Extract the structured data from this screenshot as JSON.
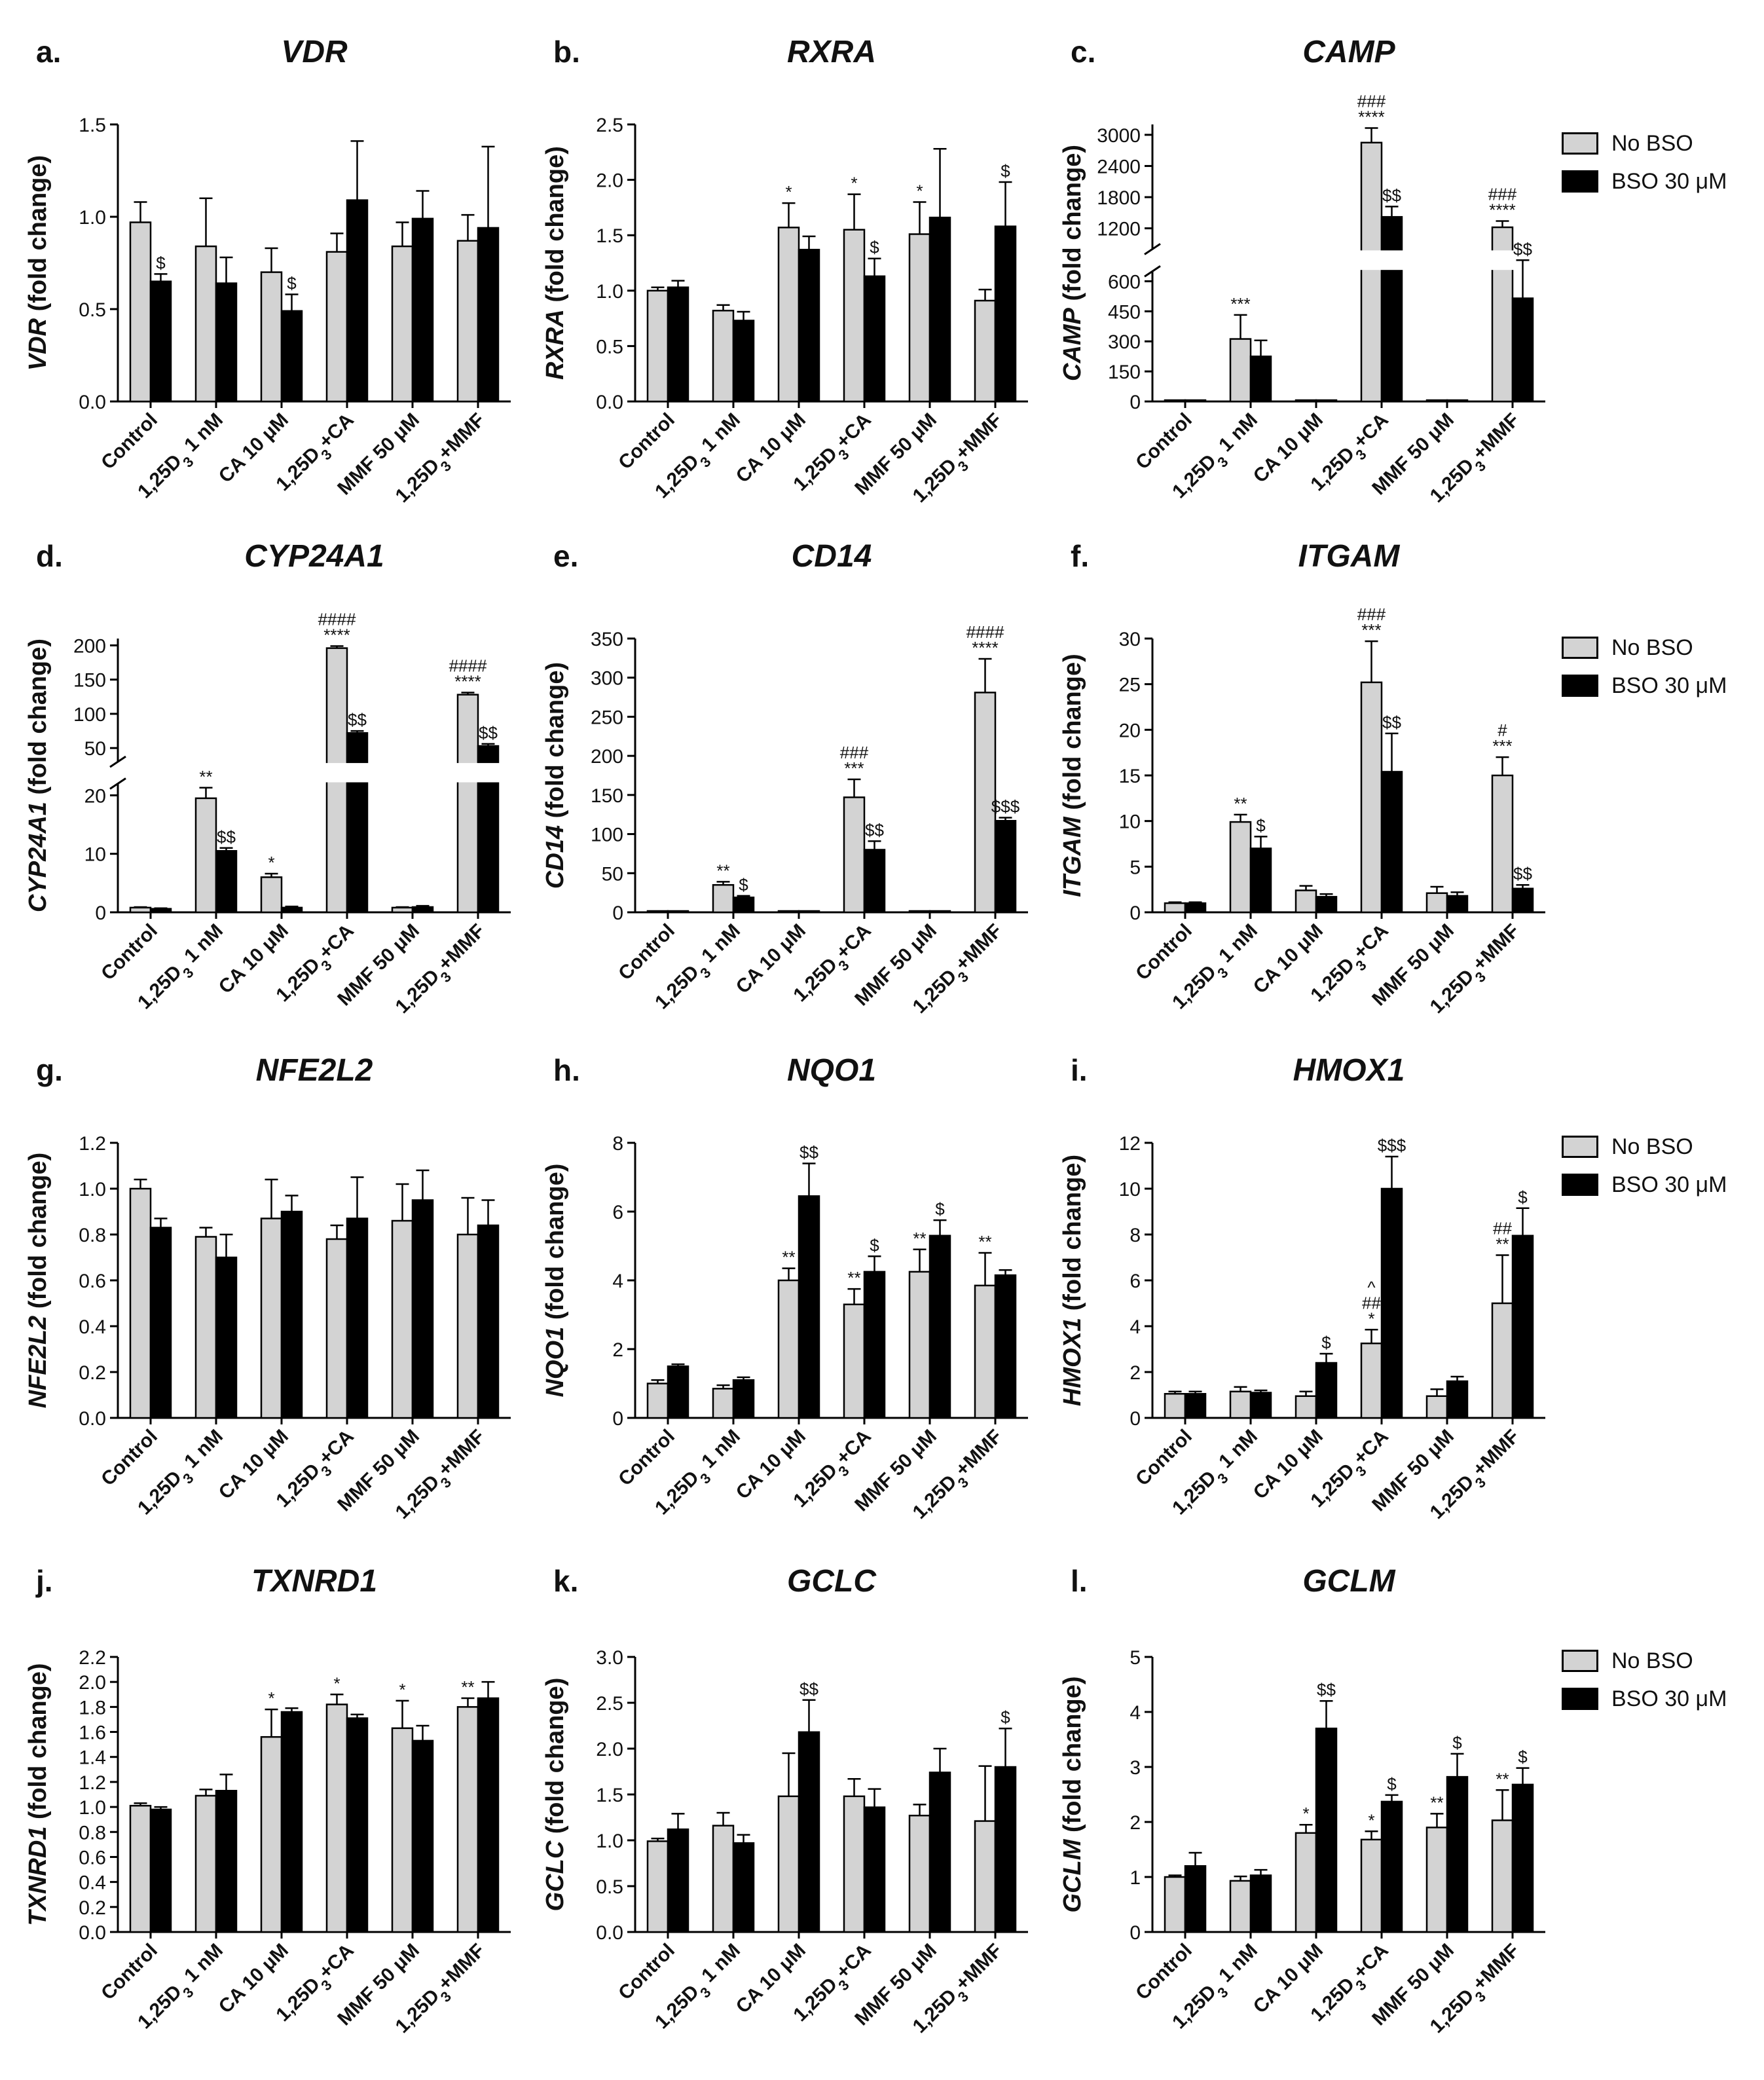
{
  "legend": {
    "items": [
      {
        "label": "No BSO",
        "color": "#d3d3d3"
      },
      {
        "label": "BSO 30 μM",
        "color": "#000000"
      }
    ]
  },
  "chart_data": [
    {
      "type": "bar",
      "letter": "a.",
      "title": "VDR",
      "ylabel_gene": "VDR",
      "ylabel_suffix": " (fold change)",
      "categories": [
        "Control",
        "1,25D3 1 nM",
        "CA 10 μM",
        "1,25D3+CA",
        "MMF 50 μM",
        "1,25D3+MMF"
      ],
      "ylim": [
        0,
        1.5
      ],
      "yticks": [
        "0.0",
        "0.5",
        "1.0",
        "1.5"
      ],
      "series": [
        {
          "name": "No BSO",
          "values": [
            0.97,
            0.84,
            0.7,
            0.81,
            0.84,
            0.87
          ],
          "errors": [
            0.11,
            0.26,
            0.13,
            0.1,
            0.13,
            0.14
          ],
          "annotations": [
            "",
            "",
            "",
            "",
            "",
            ""
          ]
        },
        {
          "name": "BSO 30 μM",
          "values": [
            0.65,
            0.64,
            0.49,
            1.09,
            0.99,
            0.94
          ],
          "errors": [
            0.04,
            0.14,
            0.09,
            0.32,
            0.15,
            0.44
          ],
          "annotations": [
            "$",
            "",
            "$",
            "",
            "",
            ""
          ]
        }
      ]
    },
    {
      "type": "bar",
      "letter": "b.",
      "title": "RXRA",
      "ylabel_gene": "RXRA",
      "ylabel_suffix": " (fold change)",
      "categories": [
        "Control",
        "1,25D3 1 nM",
        "CA 10 μM",
        "1,25D3+CA",
        "MMF 50 μM",
        "1,25D3+MMF"
      ],
      "ylim": [
        0,
        2.5
      ],
      "yticks": [
        "0.0",
        "0.5",
        "1.0",
        "1.5",
        "2.0",
        "2.5"
      ],
      "series": [
        {
          "name": "No BSO",
          "values": [
            1.0,
            0.82,
            1.57,
            1.55,
            1.51,
            0.91
          ],
          "errors": [
            0.03,
            0.05,
            0.22,
            0.32,
            0.29,
            0.1
          ],
          "annotations": [
            "",
            "",
            "*",
            "*",
            "*",
            ""
          ]
        },
        {
          "name": "BSO 30 μM",
          "values": [
            1.03,
            0.73,
            1.37,
            1.13,
            1.66,
            1.58
          ],
          "errors": [
            0.06,
            0.08,
            0.12,
            0.16,
            0.62,
            0.4
          ],
          "annotations": [
            "",
            "",
            "",
            "$",
            "",
            "$"
          ]
        }
      ]
    },
    {
      "type": "bar",
      "letter": "c.",
      "title": "CAMP",
      "ylabel_gene": "CAMP",
      "ylabel_suffix": " (fold change)",
      "categories": [
        "Control",
        "1,25D3 1 nM",
        "CA 10 μM",
        "1,25D3+CA",
        "MMF 50 μM",
        "1,25D3+MMF"
      ],
      "broken_axis": {
        "lower": [
          0,
          650
        ],
        "upper": [
          800,
          3200
        ]
      },
      "yticks": [
        "0",
        "150",
        "300",
        "450",
        "600",
        "1200",
        "1800",
        "2400",
        "3000"
      ],
      "series": [
        {
          "name": "No BSO",
          "values": [
            1,
            312,
            1,
            2850,
            1,
            1220
          ],
          "errors": [
            0,
            120,
            0,
            280,
            0,
            120
          ],
          "annotations": [
            "",
            "***",
            "",
            "###\n****",
            "",
            "###\n****"
          ]
        },
        {
          "name": "BSO 30 μM",
          "values": [
            1,
            225,
            1,
            1420,
            1,
            515
          ],
          "errors": [
            0,
            80,
            0,
            200,
            0,
            180
          ],
          "annotations": [
            "",
            "",
            "",
            "$$",
            "",
            "$$"
          ]
        }
      ]
    },
    {
      "type": "bar",
      "letter": "d.",
      "title": "CYP24A1",
      "ylabel_gene": "CYP24A1",
      "ylabel_suffix": " (fold change)",
      "categories": [
        "Control",
        "1,25D3 1 nM",
        "CA 10 μM",
        "1,25D3+CA",
        "MMF 50 μM",
        "1,25D3+MMF"
      ],
      "broken_axis": {
        "lower": [
          0,
          22
        ],
        "upper": [
          30,
          210
        ]
      },
      "yticks": [
        "0",
        "10",
        "20",
        "50",
        "100",
        "150",
        "200"
      ],
      "series": [
        {
          "name": "No BSO",
          "values": [
            0.8,
            19.5,
            6,
            196,
            0.8,
            128
          ],
          "errors": [
            0.1,
            1.8,
            0.6,
            3,
            0.1,
            3
          ],
          "annotations": [
            "",
            "**",
            "*",
            "####\n****",
            "",
            "####\n****"
          ]
        },
        {
          "name": "BSO 30 μM",
          "values": [
            0.6,
            10.5,
            0.8,
            72,
            0.9,
            53
          ],
          "errors": [
            0.1,
            0.5,
            0.2,
            3,
            0.2,
            3
          ],
          "annotations": [
            "",
            "$$",
            "",
            "$$",
            "",
            "$$"
          ]
        }
      ]
    },
    {
      "type": "bar",
      "letter": "e.",
      "title": "CD14",
      "ylabel_gene": "CD14",
      "ylabel_suffix": " (fold change)",
      "categories": [
        "Control",
        "1,25D3 1 nM",
        "CA 10 μM",
        "1,25D3+CA",
        "MMF 50 μM",
        "1,25D3+MMF"
      ],
      "ylim": [
        0,
        350
      ],
      "yticks": [
        "0",
        "50",
        "100",
        "150",
        "200",
        "250",
        "300",
        "350"
      ],
      "series": [
        {
          "name": "No BSO",
          "values": [
            1,
            35,
            1,
            147,
            1,
            281
          ],
          "errors": [
            0,
            4,
            0,
            23,
            0,
            43
          ],
          "annotations": [
            "",
            "**",
            "",
            "###\n***",
            "",
            "####\n****"
          ]
        },
        {
          "name": "BSO 30 μM",
          "values": [
            1,
            19,
            1,
            80,
            1,
            117
          ],
          "errors": [
            0,
            2,
            0,
            11,
            0,
            4
          ],
          "annotations": [
            "",
            "$",
            "",
            "$$",
            "",
            "$$$"
          ]
        }
      ]
    },
    {
      "type": "bar",
      "letter": "f.",
      "title": "ITGAM",
      "ylabel_gene": "ITGAM",
      "ylabel_suffix": " (fold change)",
      "categories": [
        "Control",
        "1,25D3 1 nM",
        "CA 10 μM",
        "1,25D3+CA",
        "MMF 50 μM",
        "1,25D3+MMF"
      ],
      "ylim": [
        0,
        30
      ],
      "yticks": [
        "0",
        "5",
        "10",
        "15",
        "20",
        "25",
        "30"
      ],
      "series": [
        {
          "name": "No BSO",
          "values": [
            1,
            9.9,
            2.4,
            25.2,
            2.1,
            15
          ],
          "errors": [
            0.1,
            0.8,
            0.5,
            4.5,
            0.7,
            2
          ],
          "annotations": [
            "",
            "**",
            "",
            "###\n***",
            "",
            "#\n***"
          ]
        },
        {
          "name": "BSO 30 μM",
          "values": [
            1,
            7,
            1.7,
            15.4,
            1.8,
            2.6
          ],
          "errors": [
            0.1,
            1.3,
            0.3,
            4.2,
            0.4,
            0.4
          ],
          "annotations": [
            "",
            "$",
            "",
            "$$",
            "",
            "$$"
          ]
        }
      ]
    },
    {
      "type": "bar",
      "letter": "g.",
      "title": "NFE2L2",
      "ylabel_gene": "NFE2L2",
      "ylabel_suffix": " (fold change)",
      "categories": [
        "Control",
        "1,25D3 1 nM",
        "CA 10 μM",
        "1,25D3+CA",
        "MMF 50 μM",
        "1,25D3+MMF"
      ],
      "ylim": [
        0,
        1.2
      ],
      "yticks": [
        "0.0",
        "0.2",
        "0.4",
        "0.6",
        "0.8",
        "1.0",
        "1.2"
      ],
      "series": [
        {
          "name": "No BSO",
          "values": [
            1.0,
            0.79,
            0.87,
            0.78,
            0.86,
            0.8
          ],
          "errors": [
            0.04,
            0.04,
            0.17,
            0.06,
            0.16,
            0.16
          ],
          "annotations": [
            "",
            "",
            "",
            "",
            "",
            ""
          ]
        },
        {
          "name": "BSO 30 μM",
          "values": [
            0.83,
            0.7,
            0.9,
            0.87,
            0.95,
            0.84
          ],
          "errors": [
            0.04,
            0.1,
            0.07,
            0.18,
            0.13,
            0.11
          ],
          "annotations": [
            "",
            "",
            "",
            "",
            "",
            ""
          ]
        }
      ]
    },
    {
      "type": "bar",
      "letter": "h.",
      "title": "NQO1",
      "ylabel_gene": "NQO1",
      "ylabel_suffix": " (fold change)",
      "categories": [
        "Control",
        "1,25D3 1 nM",
        "CA 10 μM",
        "1,25D3+CA",
        "MMF 50 μM",
        "1,25D3+MMF"
      ],
      "ylim": [
        0,
        8
      ],
      "yticks": [
        "0",
        "2",
        "4",
        "6",
        "8"
      ],
      "series": [
        {
          "name": "No BSO",
          "values": [
            1,
            0.85,
            4.0,
            3.3,
            4.25,
            3.85
          ],
          "errors": [
            0.1,
            0.1,
            0.35,
            0.45,
            0.65,
            0.95
          ],
          "annotations": [
            "",
            "",
            "**",
            "**",
            "**",
            "**"
          ]
        },
        {
          "name": "BSO 30 μM",
          "values": [
            1.5,
            1.1,
            6.45,
            4.25,
            5.3,
            4.15
          ],
          "errors": [
            0.06,
            0.08,
            0.95,
            0.45,
            0.45,
            0.15
          ],
          "annotations": [
            "",
            "",
            "$$",
            "$",
            "$",
            ""
          ]
        }
      ]
    },
    {
      "type": "bar",
      "letter": "i.",
      "title": "HMOX1",
      "ylabel_gene": "HMOX1",
      "ylabel_suffix": " (fold change)",
      "categories": [
        "Control",
        "1,25D3 1 nM",
        "CA 10 μM",
        "1,25D3+CA",
        "MMF 50 μM",
        "1,25D3+MMF"
      ],
      "ylim": [
        0,
        12
      ],
      "yticks": [
        "0",
        "2",
        "4",
        "6",
        "8",
        "10",
        "12"
      ],
      "series": [
        {
          "name": "No BSO",
          "values": [
            1.05,
            1.15,
            0.95,
            3.25,
            0.95,
            5.0
          ],
          "errors": [
            0.1,
            0.2,
            0.2,
            0.6,
            0.3,
            2.1
          ],
          "annotations": [
            "",
            "",
            "",
            "^\n##\n*",
            "",
            "##\n**"
          ]
        },
        {
          "name": "BSO 30 μM",
          "values": [
            1.05,
            1.1,
            2.4,
            10.0,
            1.6,
            7.95
          ],
          "errors": [
            0.1,
            0.1,
            0.4,
            1.4,
            0.2,
            1.2
          ],
          "annotations": [
            "",
            "",
            "$",
            "$$$",
            "",
            "$"
          ]
        }
      ]
    },
    {
      "type": "bar",
      "letter": "j.",
      "title": "TXNRD1",
      "ylabel_gene": "TXNRD1",
      "ylabel_suffix": " (fold change)",
      "categories": [
        "Control",
        "1,25D3 1 nM",
        "CA 10 μM",
        "1,25D3+CA",
        "MMF 50 μM",
        "1,25D3+MMF"
      ],
      "ylim": [
        0,
        2.2
      ],
      "yticks": [
        "0.0",
        "0.2",
        "0.4",
        "0.6",
        "0.8",
        "1.0",
        "1.2",
        "1.4",
        "1.6",
        "1.8",
        "2.0",
        "2.2"
      ],
      "series": [
        {
          "name": "No BSO",
          "values": [
            1.01,
            1.09,
            1.56,
            1.82,
            1.63,
            1.8
          ],
          "errors": [
            0.02,
            0.05,
            0.22,
            0.08,
            0.22,
            0.07
          ],
          "annotations": [
            "",
            "",
            "*",
            "*",
            "*",
            "**"
          ]
        },
        {
          "name": "BSO 30 μM",
          "values": [
            0.98,
            1.13,
            1.76,
            1.71,
            1.53,
            1.87
          ],
          "errors": [
            0.02,
            0.13,
            0.03,
            0.03,
            0.12,
            0.13
          ],
          "annotations": [
            "",
            "",
            "",
            "",
            "",
            ""
          ]
        }
      ]
    },
    {
      "type": "bar",
      "letter": "k.",
      "title": "GCLC",
      "ylabel_gene": "GCLC",
      "ylabel_suffix": " (fold change)",
      "categories": [
        "Control",
        "1,25D3 1 nM",
        "CA 10 μM",
        "1,25D3+CA",
        "MMF 50 μM",
        "1,25D3+MMF"
      ],
      "ylim": [
        0,
        3
      ],
      "yticks": [
        "0.0",
        "0.5",
        "1.0",
        "1.5",
        "2.0",
        "2.5",
        "3.0"
      ],
      "series": [
        {
          "name": "No BSO",
          "values": [
            0.99,
            1.16,
            1.48,
            1.48,
            1.27,
            1.21
          ],
          "errors": [
            0.03,
            0.14,
            0.47,
            0.19,
            0.12,
            0.6
          ],
          "annotations": [
            "",
            "",
            "",
            "",
            "",
            ""
          ]
        },
        {
          "name": "BSO 30 μM",
          "values": [
            1.12,
            0.97,
            2.18,
            1.36,
            1.74,
            1.8
          ],
          "errors": [
            0.17,
            0.09,
            0.35,
            0.2,
            0.26,
            0.42
          ],
          "annotations": [
            "",
            "",
            "$$",
            "",
            "",
            "$"
          ]
        }
      ]
    },
    {
      "type": "bar",
      "letter": "l.",
      "title": "GCLM",
      "ylabel_gene": "GCLM",
      "ylabel_suffix": " (fold change)",
      "categories": [
        "Control",
        "1,25D3 1 nM",
        "CA 10 μM",
        "1,25D3+CA",
        "MMF 50 μM",
        "1,25D3+MMF"
      ],
      "ylim": [
        0,
        5
      ],
      "yticks": [
        "0",
        "1",
        "2",
        "3",
        "4",
        "5"
      ],
      "series": [
        {
          "name": "No BSO",
          "values": [
            1.0,
            0.93,
            1.8,
            1.68,
            1.9,
            2.03
          ],
          "errors": [
            0.03,
            0.08,
            0.15,
            0.15,
            0.25,
            0.55
          ],
          "annotations": [
            "",
            "",
            "*",
            "*",
            "**",
            "**"
          ]
        },
        {
          "name": "BSO 30 μM",
          "values": [
            1.2,
            1.03,
            3.7,
            2.37,
            2.82,
            2.68
          ],
          "errors": [
            0.24,
            0.1,
            0.5,
            0.12,
            0.42,
            0.3
          ],
          "annotations": [
            "",
            "",
            "$$",
            "$",
            "$",
            "$"
          ]
        }
      ]
    }
  ]
}
